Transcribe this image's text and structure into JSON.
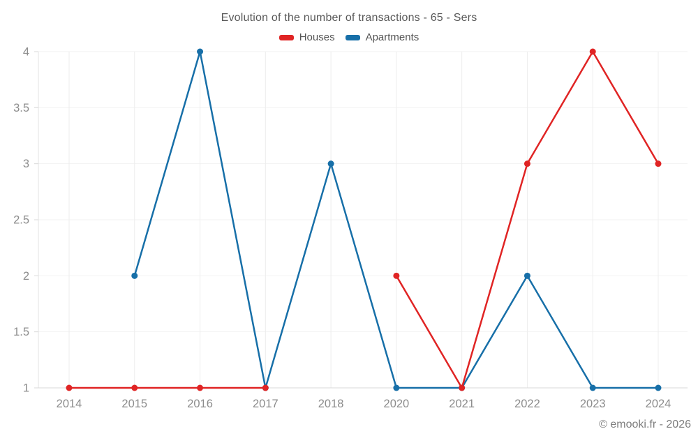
{
  "watermark": "© emooki.fr - 2026",
  "colors": {
    "houses": "#e02424",
    "apartments": "#176fa8",
    "grid_line": "#ededed",
    "axis_line": "#d9d9d9",
    "y_axis_line": "#e3e3e3",
    "tick_label": "#8c8c8c",
    "title_text": "#595959"
  },
  "chart_data": {
    "type": "line",
    "title": "Evolution of the number of transactions - 65 - Sers",
    "categories": [
      "2014",
      "2015",
      "2016",
      "2017",
      "2018",
      "2020",
      "2021",
      "2022",
      "2023",
      "2024"
    ],
    "series": [
      {
        "name": "Houses",
        "color": "#e02424",
        "values": [
          1,
          1,
          1,
          1,
          null,
          2,
          1,
          3,
          4,
          3
        ]
      },
      {
        "name": "Apartments",
        "color": "#176fa8",
        "values": [
          null,
          2,
          4,
          1,
          3,
          1,
          1,
          2,
          1,
          1
        ]
      }
    ],
    "yticks": [
      1,
      1.5,
      2,
      2.5,
      3,
      3.5,
      4
    ],
    "ylim": [
      1,
      4
    ],
    "xlabel": "",
    "ylabel": "",
    "grid": true,
    "legend_position": "top",
    "marker": "circle"
  }
}
